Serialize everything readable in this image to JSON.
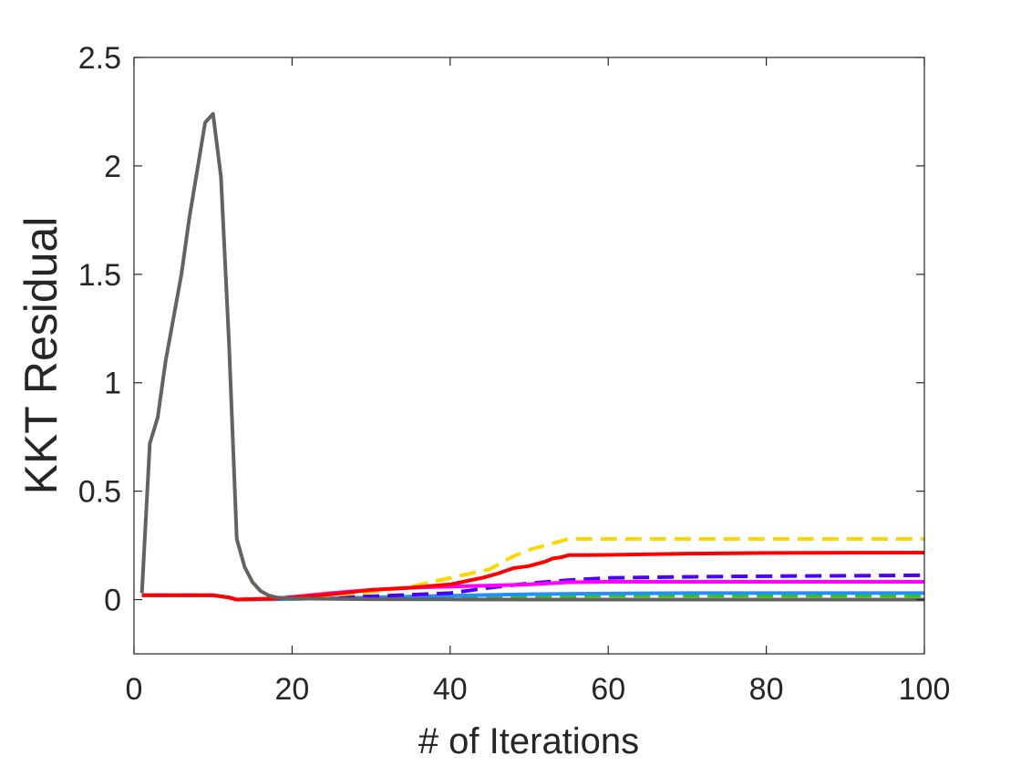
{
  "chart_data": {
    "type": "line",
    "title": "",
    "xlabel": "# of Iterations",
    "ylabel": "KKT Residual",
    "xlim": [
      0,
      100
    ],
    "ylim": [
      -0.25,
      2.5
    ],
    "xticks": [
      0,
      20,
      40,
      60,
      80,
      100
    ],
    "xtick_labels": [
      "0",
      "20",
      "40",
      "60",
      "80",
      "100"
    ],
    "yticks": [
      0,
      0.5,
      1,
      1.5,
      2,
      2.5
    ],
    "ytick_labels": [
      "0",
      "0.5",
      "1",
      "1.5",
      "2",
      "2.5"
    ],
    "grid": false,
    "legend": "none",
    "series": [
      {
        "color": "#636363",
        "dash": "solid",
        "x": [
          1,
          2,
          3,
          4,
          5,
          6,
          7,
          8,
          9,
          10,
          11,
          12,
          13,
          14,
          15,
          16,
          17,
          18,
          20,
          30,
          40,
          50,
          60,
          70,
          80,
          90,
          100
        ],
        "y": [
          0.03,
          0.72,
          0.84,
          1.1,
          1.3,
          1.5,
          1.76,
          1.98,
          2.2,
          2.24,
          1.95,
          1.2,
          0.28,
          0.15,
          0.08,
          0.04,
          0.02,
          0.01,
          0.005,
          0.002,
          0.001,
          0.0,
          0.0,
          0.0,
          0.0,
          0.0,
          0.0
        ]
      },
      {
        "color": "#ff0000",
        "dash": "solid",
        "x": [
          1,
          10,
          12,
          13,
          18,
          25,
          30,
          35,
          40,
          44,
          46,
          48,
          50,
          52,
          53,
          54,
          55,
          60,
          70,
          80,
          90,
          100
        ],
        "y": [
          0.02,
          0.02,
          0.01,
          0.0,
          0.005,
          0.025,
          0.045,
          0.055,
          0.07,
          0.1,
          0.12,
          0.145,
          0.155,
          0.175,
          0.19,
          0.195,
          0.205,
          0.206,
          0.212,
          0.215,
          0.216,
          0.217
        ]
      },
      {
        "color": "#ffd700",
        "dash": "dash",
        "x": [
          1,
          10,
          12,
          13,
          18,
          25,
          30,
          35,
          40,
          45,
          48,
          50,
          52,
          54,
          55,
          60,
          70,
          80,
          90,
          100
        ],
        "y": [
          0.02,
          0.02,
          0.01,
          0.0,
          0.005,
          0.02,
          0.035,
          0.06,
          0.1,
          0.14,
          0.2,
          0.23,
          0.25,
          0.27,
          0.28,
          0.28,
          0.28,
          0.28,
          0.28,
          0.28
        ]
      },
      {
        "color": "#4b00ff",
        "dash": "dash",
        "x": [
          1,
          10,
          12,
          13,
          18,
          30,
          40,
          45,
          50,
          55,
          60,
          70,
          80,
          90,
          100
        ],
        "y": [
          0.02,
          0.02,
          0.01,
          0.0,
          0.005,
          0.015,
          0.03,
          0.055,
          0.075,
          0.09,
          0.1,
          0.105,
          0.108,
          0.11,
          0.112
        ]
      },
      {
        "color": "#ff00ff",
        "dash": "solid",
        "x": [
          1,
          10,
          12,
          13,
          18,
          25,
          30,
          35,
          40,
          45,
          50,
          55,
          60,
          70,
          80,
          90,
          100
        ],
        "y": [
          0.02,
          0.02,
          0.01,
          0.0,
          0.005,
          0.03,
          0.045,
          0.055,
          0.06,
          0.065,
          0.07,
          0.08,
          0.082,
          0.082,
          0.082,
          0.082,
          0.082
        ]
      },
      {
        "color": "#1e90ff",
        "dash": "solid",
        "x": [
          1,
          10,
          12,
          13,
          18,
          30,
          40,
          50,
          60,
          70,
          80,
          90,
          100
        ],
        "y": [
          0.02,
          0.02,
          0.01,
          0.0,
          0.002,
          0.01,
          0.018,
          0.025,
          0.028,
          0.03,
          0.03,
          0.03,
          0.03
        ]
      },
      {
        "color": "#33cc00",
        "dash": "dash",
        "x": [
          1,
          10,
          12,
          13,
          18,
          30,
          40,
          50,
          60,
          70,
          80,
          90,
          100
        ],
        "y": [
          0.02,
          0.02,
          0.01,
          0.0,
          0.002,
          0.008,
          0.012,
          0.016,
          0.018,
          0.018,
          0.018,
          0.018,
          0.018
        ]
      }
    ]
  }
}
